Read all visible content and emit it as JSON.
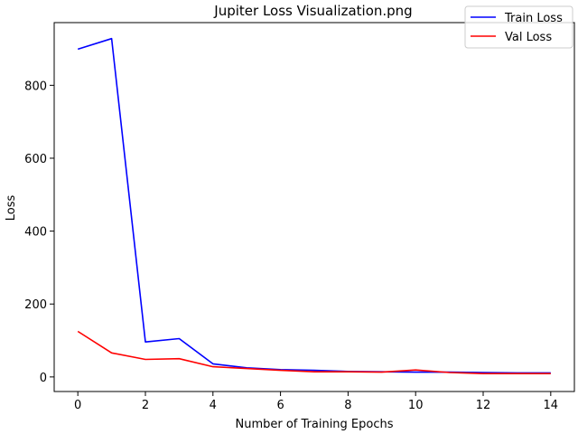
{
  "chart_data": {
    "type": "line",
    "title": "Jupiter Loss Visualization.png",
    "xlabel": "Number of Training Epochs",
    "ylabel": "Loss",
    "x": [
      0,
      1,
      2,
      3,
      4,
      5,
      6,
      7,
      8,
      9,
      10,
      11,
      12,
      13,
      14
    ],
    "xlim": [
      -0.7,
      14.7
    ],
    "ylim": [
      -40,
      972
    ],
    "xticks": [
      0,
      2,
      4,
      6,
      8,
      10,
      12,
      14
    ],
    "yticks": [
      0,
      200,
      400,
      600,
      800
    ],
    "grid": false,
    "legend_position": "top-right",
    "series": [
      {
        "name": "Train Loss",
        "color": "#0000ff",
        "values": [
          899,
          928,
          96,
          105,
          36,
          25,
          20,
          18,
          15,
          14,
          13,
          13,
          12,
          11,
          11
        ]
      },
      {
        "name": "Val Loss",
        "color": "#ff0000",
        "values": [
          125,
          66,
          48,
          50,
          28,
          23,
          18,
          14,
          14,
          13,
          19,
          12,
          9,
          9,
          9
        ]
      }
    ]
  }
}
